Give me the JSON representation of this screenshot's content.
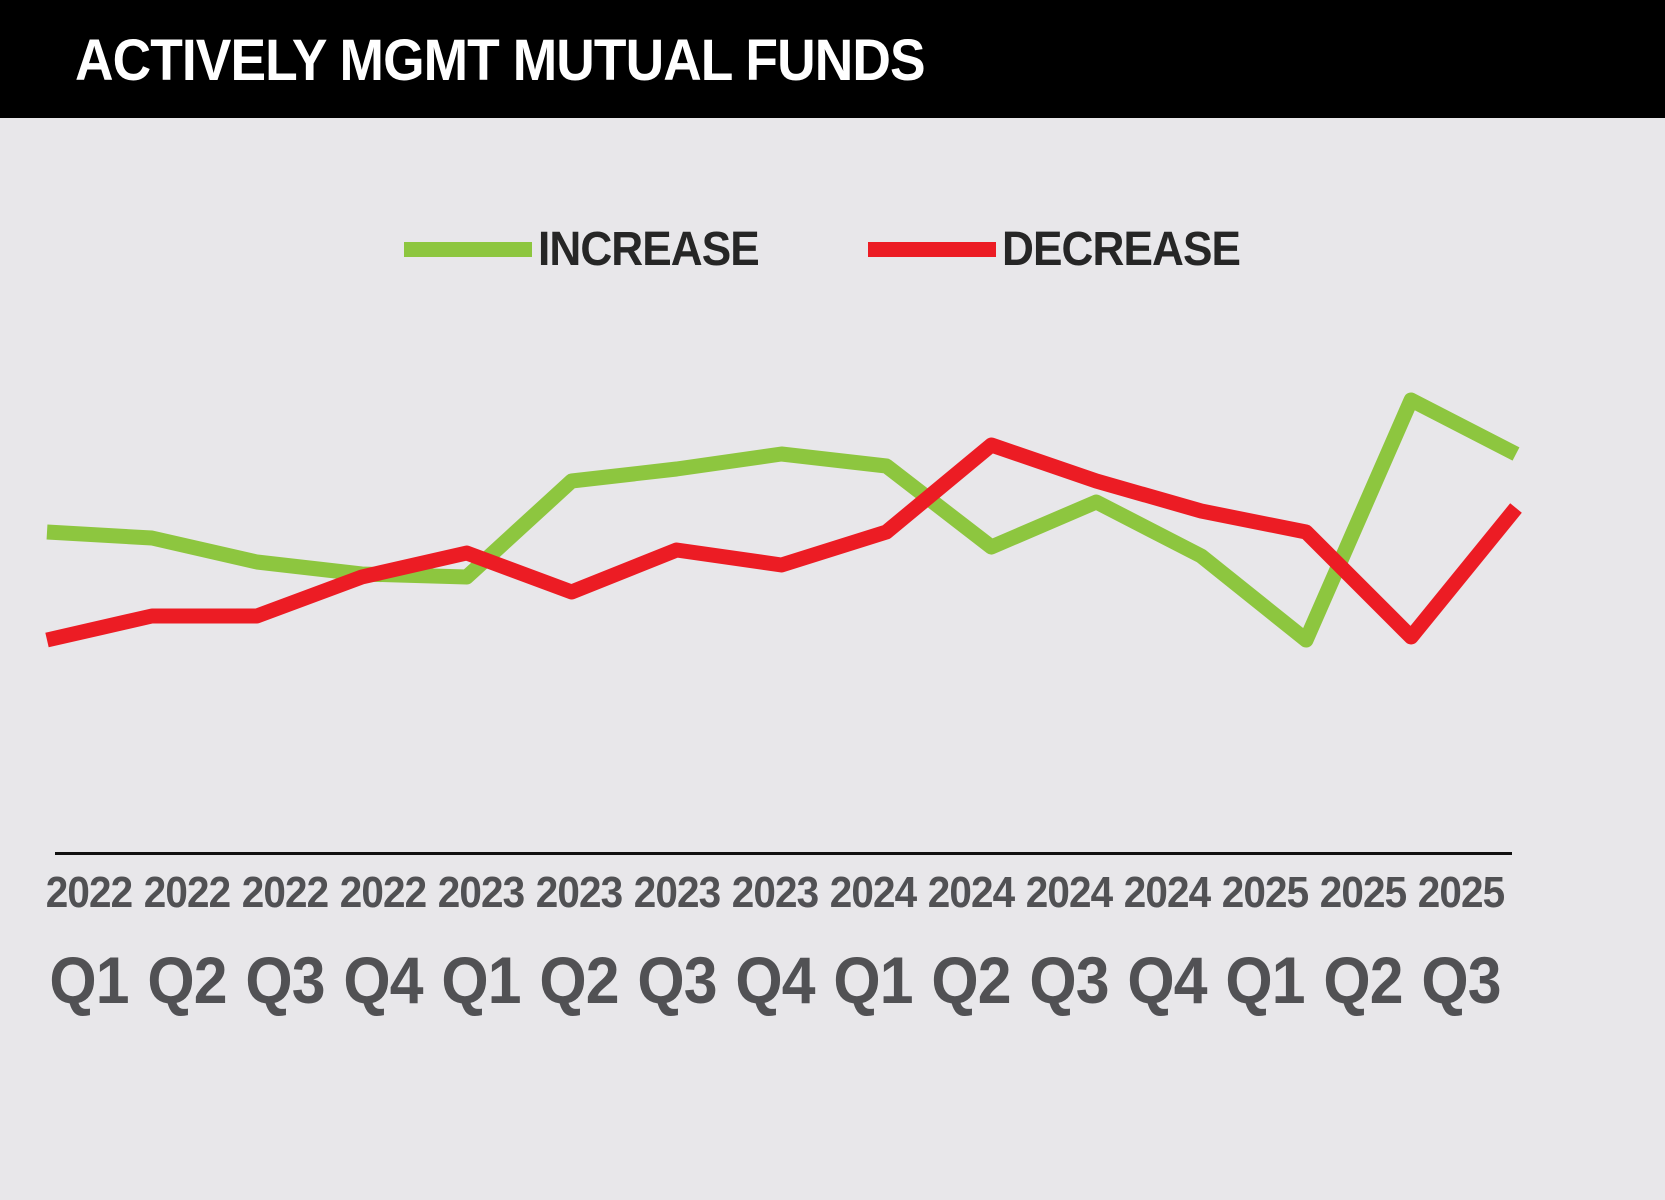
{
  "title": "ACTIVELY MGMT MUTUAL FUNDS",
  "colors": {
    "background": "#e8e7ea",
    "title_bar": "#000000",
    "title_text": "#ffffff",
    "increase": "#8dc63f",
    "decrease": "#ec1c24",
    "axis_line": "#111111",
    "axis_label": "#515154",
    "legend_text": "#262626"
  },
  "legend": {
    "items": [
      {
        "label": "INCREASE",
        "color": "#8dc63f"
      },
      {
        "label": "DECREASE",
        "color": "#ec1c24"
      }
    ]
  },
  "axis": {
    "years": [
      "2022",
      "2022",
      "2022",
      "2022",
      "2023",
      "2023",
      "2023",
      "2023",
      "2024",
      "2024",
      "2024",
      "2024",
      "2025",
      "2025",
      "2025"
    ],
    "quarters": [
      "Q1",
      "Q2",
      "Q3",
      "Q4",
      "Q1",
      "Q2",
      "Q3",
      "Q4",
      "Q1",
      "Q2",
      "Q3",
      "Q4",
      "Q1",
      "Q2",
      "Q3"
    ]
  },
  "chart_data": {
    "type": "line",
    "title": "ACTIVELY MGMT MUTUAL FUNDS",
    "xlabel": "",
    "ylabel": "",
    "ylim": [
      0,
      120
    ],
    "grid": false,
    "legend_position": "top",
    "y_axis_shown": false,
    "categories": [
      "2022 Q1",
      "2022 Q2",
      "2022 Q3",
      "2022 Q4",
      "2023 Q1",
      "2023 Q2",
      "2023 Q3",
      "2023 Q4",
      "2024 Q1",
      "2024 Q2",
      "2024 Q3",
      "2024 Q4",
      "2025 Q1",
      "2025 Q2",
      "2025 Q3"
    ],
    "series": [
      {
        "name": "INCREASE",
        "color": "#8dc63f",
        "values": [
          56,
          54,
          46,
          42,
          41,
          73,
          77,
          82,
          78,
          51,
          66,
          48,
          20,
          100,
          82
        ]
      },
      {
        "name": "DECREASE",
        "color": "#ec1c24",
        "values": [
          20,
          28,
          28,
          41,
          49,
          36,
          50,
          45,
          56,
          85,
          73,
          63,
          56,
          21,
          64
        ]
      }
    ]
  }
}
